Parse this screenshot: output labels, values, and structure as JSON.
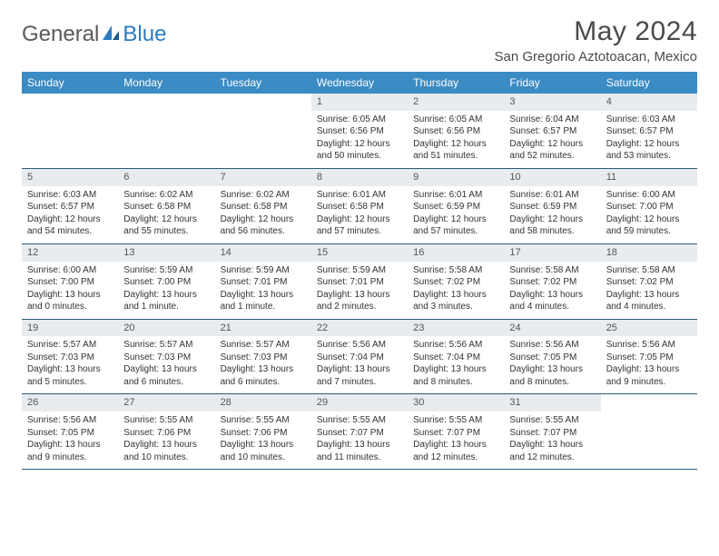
{
  "logo": {
    "text1": "General",
    "text2": "Blue"
  },
  "title": "May 2024",
  "location": "San Gregorio Aztotoacan, Mexico",
  "colors": {
    "header_bg": "#3b8bc4",
    "header_text": "#ffffff",
    "daynum_bg": "#e8ecef",
    "border": "#2b5a7a",
    "logo_gray": "#5a5a5a",
    "logo_blue": "#2b7bbf"
  },
  "weekdays": [
    "Sunday",
    "Monday",
    "Tuesday",
    "Wednesday",
    "Thursday",
    "Friday",
    "Saturday"
  ],
  "weeks": [
    [
      {
        "n": "",
        "empty": true
      },
      {
        "n": "",
        "empty": true
      },
      {
        "n": "",
        "empty": true
      },
      {
        "n": "1",
        "sr": "Sunrise: 6:05 AM",
        "ss": "Sunset: 6:56 PM",
        "dl1": "Daylight: 12 hours",
        "dl2": "and 50 minutes."
      },
      {
        "n": "2",
        "sr": "Sunrise: 6:05 AM",
        "ss": "Sunset: 6:56 PM",
        "dl1": "Daylight: 12 hours",
        "dl2": "and 51 minutes."
      },
      {
        "n": "3",
        "sr": "Sunrise: 6:04 AM",
        "ss": "Sunset: 6:57 PM",
        "dl1": "Daylight: 12 hours",
        "dl2": "and 52 minutes."
      },
      {
        "n": "4",
        "sr": "Sunrise: 6:03 AM",
        "ss": "Sunset: 6:57 PM",
        "dl1": "Daylight: 12 hours",
        "dl2": "and 53 minutes."
      }
    ],
    [
      {
        "n": "5",
        "sr": "Sunrise: 6:03 AM",
        "ss": "Sunset: 6:57 PM",
        "dl1": "Daylight: 12 hours",
        "dl2": "and 54 minutes."
      },
      {
        "n": "6",
        "sr": "Sunrise: 6:02 AM",
        "ss": "Sunset: 6:58 PM",
        "dl1": "Daylight: 12 hours",
        "dl2": "and 55 minutes."
      },
      {
        "n": "7",
        "sr": "Sunrise: 6:02 AM",
        "ss": "Sunset: 6:58 PM",
        "dl1": "Daylight: 12 hours",
        "dl2": "and 56 minutes."
      },
      {
        "n": "8",
        "sr": "Sunrise: 6:01 AM",
        "ss": "Sunset: 6:58 PM",
        "dl1": "Daylight: 12 hours",
        "dl2": "and 57 minutes."
      },
      {
        "n": "9",
        "sr": "Sunrise: 6:01 AM",
        "ss": "Sunset: 6:59 PM",
        "dl1": "Daylight: 12 hours",
        "dl2": "and 57 minutes."
      },
      {
        "n": "10",
        "sr": "Sunrise: 6:01 AM",
        "ss": "Sunset: 6:59 PM",
        "dl1": "Daylight: 12 hours",
        "dl2": "and 58 minutes."
      },
      {
        "n": "11",
        "sr": "Sunrise: 6:00 AM",
        "ss": "Sunset: 7:00 PM",
        "dl1": "Daylight: 12 hours",
        "dl2": "and 59 minutes."
      }
    ],
    [
      {
        "n": "12",
        "sr": "Sunrise: 6:00 AM",
        "ss": "Sunset: 7:00 PM",
        "dl1": "Daylight: 13 hours",
        "dl2": "and 0 minutes."
      },
      {
        "n": "13",
        "sr": "Sunrise: 5:59 AM",
        "ss": "Sunset: 7:00 PM",
        "dl1": "Daylight: 13 hours",
        "dl2": "and 1 minute."
      },
      {
        "n": "14",
        "sr": "Sunrise: 5:59 AM",
        "ss": "Sunset: 7:01 PM",
        "dl1": "Daylight: 13 hours",
        "dl2": "and 1 minute."
      },
      {
        "n": "15",
        "sr": "Sunrise: 5:59 AM",
        "ss": "Sunset: 7:01 PM",
        "dl1": "Daylight: 13 hours",
        "dl2": "and 2 minutes."
      },
      {
        "n": "16",
        "sr": "Sunrise: 5:58 AM",
        "ss": "Sunset: 7:02 PM",
        "dl1": "Daylight: 13 hours",
        "dl2": "and 3 minutes."
      },
      {
        "n": "17",
        "sr": "Sunrise: 5:58 AM",
        "ss": "Sunset: 7:02 PM",
        "dl1": "Daylight: 13 hours",
        "dl2": "and 4 minutes."
      },
      {
        "n": "18",
        "sr": "Sunrise: 5:58 AM",
        "ss": "Sunset: 7:02 PM",
        "dl1": "Daylight: 13 hours",
        "dl2": "and 4 minutes."
      }
    ],
    [
      {
        "n": "19",
        "sr": "Sunrise: 5:57 AM",
        "ss": "Sunset: 7:03 PM",
        "dl1": "Daylight: 13 hours",
        "dl2": "and 5 minutes."
      },
      {
        "n": "20",
        "sr": "Sunrise: 5:57 AM",
        "ss": "Sunset: 7:03 PM",
        "dl1": "Daylight: 13 hours",
        "dl2": "and 6 minutes."
      },
      {
        "n": "21",
        "sr": "Sunrise: 5:57 AM",
        "ss": "Sunset: 7:03 PM",
        "dl1": "Daylight: 13 hours",
        "dl2": "and 6 minutes."
      },
      {
        "n": "22",
        "sr": "Sunrise: 5:56 AM",
        "ss": "Sunset: 7:04 PM",
        "dl1": "Daylight: 13 hours",
        "dl2": "and 7 minutes."
      },
      {
        "n": "23",
        "sr": "Sunrise: 5:56 AM",
        "ss": "Sunset: 7:04 PM",
        "dl1": "Daylight: 13 hours",
        "dl2": "and 8 minutes."
      },
      {
        "n": "24",
        "sr": "Sunrise: 5:56 AM",
        "ss": "Sunset: 7:05 PM",
        "dl1": "Daylight: 13 hours",
        "dl2": "and 8 minutes."
      },
      {
        "n": "25",
        "sr": "Sunrise: 5:56 AM",
        "ss": "Sunset: 7:05 PM",
        "dl1": "Daylight: 13 hours",
        "dl2": "and 9 minutes."
      }
    ],
    [
      {
        "n": "26",
        "sr": "Sunrise: 5:56 AM",
        "ss": "Sunset: 7:05 PM",
        "dl1": "Daylight: 13 hours",
        "dl2": "and 9 minutes."
      },
      {
        "n": "27",
        "sr": "Sunrise: 5:55 AM",
        "ss": "Sunset: 7:06 PM",
        "dl1": "Daylight: 13 hours",
        "dl2": "and 10 minutes."
      },
      {
        "n": "28",
        "sr": "Sunrise: 5:55 AM",
        "ss": "Sunset: 7:06 PM",
        "dl1": "Daylight: 13 hours",
        "dl2": "and 10 minutes."
      },
      {
        "n": "29",
        "sr": "Sunrise: 5:55 AM",
        "ss": "Sunset: 7:07 PM",
        "dl1": "Daylight: 13 hours",
        "dl2": "and 11 minutes."
      },
      {
        "n": "30",
        "sr": "Sunrise: 5:55 AM",
        "ss": "Sunset: 7:07 PM",
        "dl1": "Daylight: 13 hours",
        "dl2": "and 12 minutes."
      },
      {
        "n": "31",
        "sr": "Sunrise: 5:55 AM",
        "ss": "Sunset: 7:07 PM",
        "dl1": "Daylight: 13 hours",
        "dl2": "and 12 minutes."
      },
      {
        "n": "",
        "empty": true
      }
    ]
  ]
}
